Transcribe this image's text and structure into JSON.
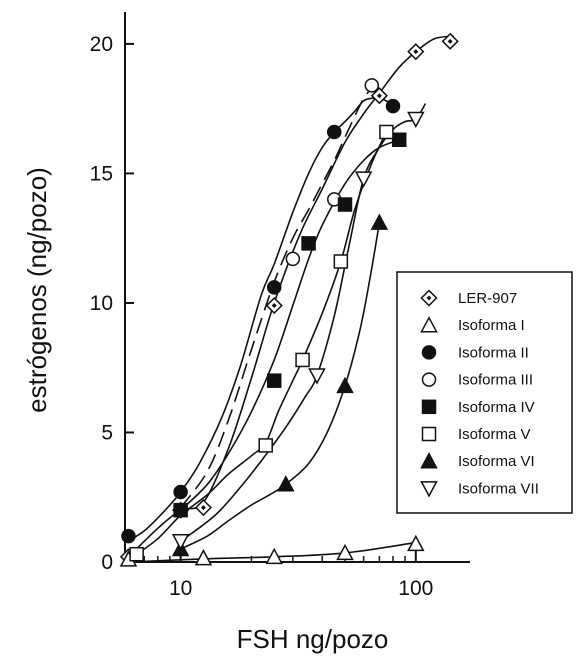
{
  "chart_data": {
    "type": "scatter",
    "xlabel": "FSH ng/pozo",
    "ylabel": "estrógenos (ng/pozo)",
    "x_scale": "log",
    "xlim": [
      5.8,
      170
    ],
    "ylim": [
      0,
      21
    ],
    "x_ticks": [
      10,
      100
    ],
    "x_tick_labels": [
      "10",
      "100"
    ],
    "y_ticks": [
      0,
      5,
      10,
      15,
      20
    ],
    "y_tick_labels": [
      "0",
      "5",
      "10",
      "15",
      "20"
    ],
    "grid": false,
    "legend_position": "right",
    "series": [
      {
        "name": "LER-907",
        "marker": "diamond-open",
        "x": [
          6,
          10,
          12.5,
          25,
          70,
          100,
          140
        ],
        "y": [
          0.2,
          2.0,
          2.1,
          9.9,
          18.0,
          19.7,
          20.1
        ],
        "curve": "solid",
        "fit_x": [
          6,
          8,
          10,
          12.5,
          16,
          20,
          25,
          32,
          40,
          50,
          60,
          70,
          85,
          100,
          120,
          145
        ],
        "fit_y": [
          0.2,
          1.3,
          2.0,
          2.3,
          4.4,
          7.1,
          10.0,
          12.6,
          14.4,
          16.2,
          17.3,
          18.1,
          19.1,
          19.7,
          20.2,
          20.3
        ]
      },
      {
        "name": "Isoforma I",
        "marker": "triangle-up-open",
        "x": [
          6,
          12.5,
          25,
          50,
          100
        ],
        "y": [
          0.1,
          0.15,
          0.2,
          0.35,
          0.7
        ],
        "curve": "solid",
        "fit_x": [
          6,
          12.5,
          25,
          50,
          100
        ],
        "fit_y": [
          0.0,
          0.12,
          0.2,
          0.35,
          0.75
        ]
      },
      {
        "name": "Isoforma II",
        "marker": "circle-filled",
        "x": [
          6,
          10,
          25,
          45,
          80
        ],
        "y": [
          1.0,
          2.7,
          10.6,
          16.6,
          17.6
        ],
        "curve": "solid",
        "fit_x": [
          6,
          7,
          8,
          9,
          10,
          12,
          15,
          18,
          22,
          25,
          30,
          35,
          40,
          45,
          50,
          55,
          60,
          65,
          70,
          75,
          80
        ],
        "fit_y": [
          0.8,
          1.2,
          1.7,
          2.2,
          2.7,
          3.8,
          5.6,
          7.6,
          10.3,
          11.5,
          13.5,
          15.0,
          16.0,
          16.6,
          17.0,
          17.4,
          17.8,
          17.9,
          17.9,
          17.8,
          17.6
        ]
      },
      {
        "name": "Isoforma III",
        "marker": "circle-open",
        "x": [
          10,
          30,
          45,
          65
        ],
        "y": [
          2.0,
          11.7,
          14.0,
          18.4
        ],
        "curve": "dashed",
        "fit_x": [
          10,
          13,
          16,
          20,
          25,
          30,
          35,
          40,
          45,
          50,
          55,
          60,
          65
        ],
        "fit_y": [
          2.1,
          3.5,
          5.5,
          8.2,
          10.8,
          12.5,
          13.6,
          14.6,
          15.5,
          16.4,
          17.2,
          17.9,
          18.3
        ]
      },
      {
        "name": "Isoforma IV",
        "marker": "square-filled",
        "x": [
          10,
          25,
          35,
          50,
          85
        ],
        "y": [
          2.0,
          7.0,
          12.3,
          13.8,
          16.3
        ],
        "curve": "solid",
        "fit_x": [
          10,
          13,
          16,
          20,
          25,
          30,
          35,
          40,
          50,
          60,
          70,
          85
        ],
        "fit_y": [
          2.0,
          3.0,
          4.2,
          5.8,
          7.8,
          9.9,
          11.7,
          13.0,
          14.6,
          15.5,
          16.0,
          16.3
        ]
      },
      {
        "name": "Isoforma V",
        "marker": "square-open",
        "x": [
          6.5,
          23,
          33,
          48,
          75
        ],
        "y": [
          0.3,
          4.5,
          7.8,
          11.6,
          16.6
        ],
        "curve": "solid",
        "fit_x": [
          6.5,
          8,
          10,
          13,
          16,
          20,
          23,
          26,
          30,
          33,
          40,
          48,
          55,
          65,
          75
        ],
        "fit_y": [
          0.3,
          0.9,
          1.8,
          2.6,
          3.4,
          4.1,
          4.6,
          5.8,
          7.0,
          7.8,
          9.6,
          11.6,
          13.6,
          15.4,
          16.6
        ]
      },
      {
        "name": "Isoforma VI",
        "marker": "triangle-up-filled",
        "x": [
          10,
          28,
          50,
          70
        ],
        "y": [
          0.5,
          3.0,
          6.8,
          13.1
        ],
        "curve": "solid",
        "fit_x": [
          10,
          13,
          16,
          20,
          24,
          28,
          35,
          42,
          50,
          58,
          64,
          70
        ],
        "fit_y": [
          0.5,
          1.0,
          1.6,
          2.2,
          2.6,
          3.0,
          3.8,
          5.0,
          6.8,
          9.0,
          11.0,
          13.1
        ]
      },
      {
        "name": "Isoforma VII",
        "marker": "triangle-down-open",
        "x": [
          10,
          38,
          60,
          100
        ],
        "y": [
          0.8,
          7.2,
          14.8,
          17.1
        ],
        "curve": "solid",
        "fit_x": [
          10,
          14,
          18,
          22,
          28,
          34,
          38,
          45,
          52,
          60,
          70,
          80,
          90,
          100,
          110
        ],
        "fit_y": [
          0.8,
          1.8,
          2.9,
          3.9,
          5.2,
          6.4,
          7.2,
          9.5,
          12.2,
          14.8,
          16.0,
          16.7,
          17.0,
          17.1,
          17.7
        ]
      }
    ]
  }
}
